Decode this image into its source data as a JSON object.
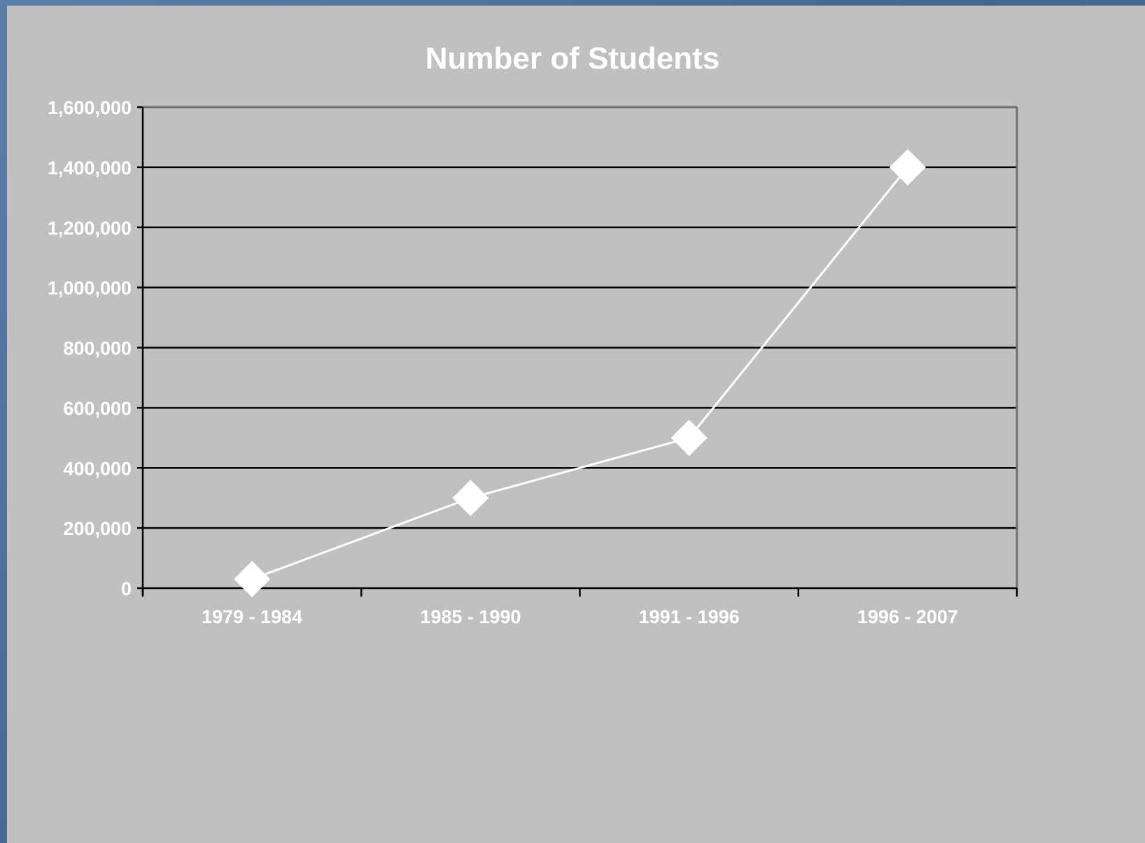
{
  "chart_data": {
    "type": "line",
    "title": "Number of Students",
    "xlabel": "",
    "ylabel": "",
    "categories": [
      "1979 - 1984",
      "1985 - 1990",
      "1991 - 1996",
      "1996 - 2007"
    ],
    "series": [
      {
        "values": [
          30000,
          300000,
          500000,
          1400000
        ],
        "color": "#ffffff",
        "marker": "diamond"
      }
    ],
    "ylim": [
      0,
      1600000
    ],
    "yticks": [
      0,
      200000,
      400000,
      600000,
      800000,
      1000000,
      1200000,
      1400000,
      1600000
    ],
    "ytick_labels": [
      "0",
      "200,000",
      "400,000",
      "600,000",
      "800,000",
      "1,000,000",
      "1,200,000",
      "1,400,000",
      "1,600,000"
    ],
    "grid": true,
    "legend": "none",
    "colors": {
      "background": "#c0c0c0",
      "gridline": "#000000",
      "text": "#ffffff"
    }
  }
}
